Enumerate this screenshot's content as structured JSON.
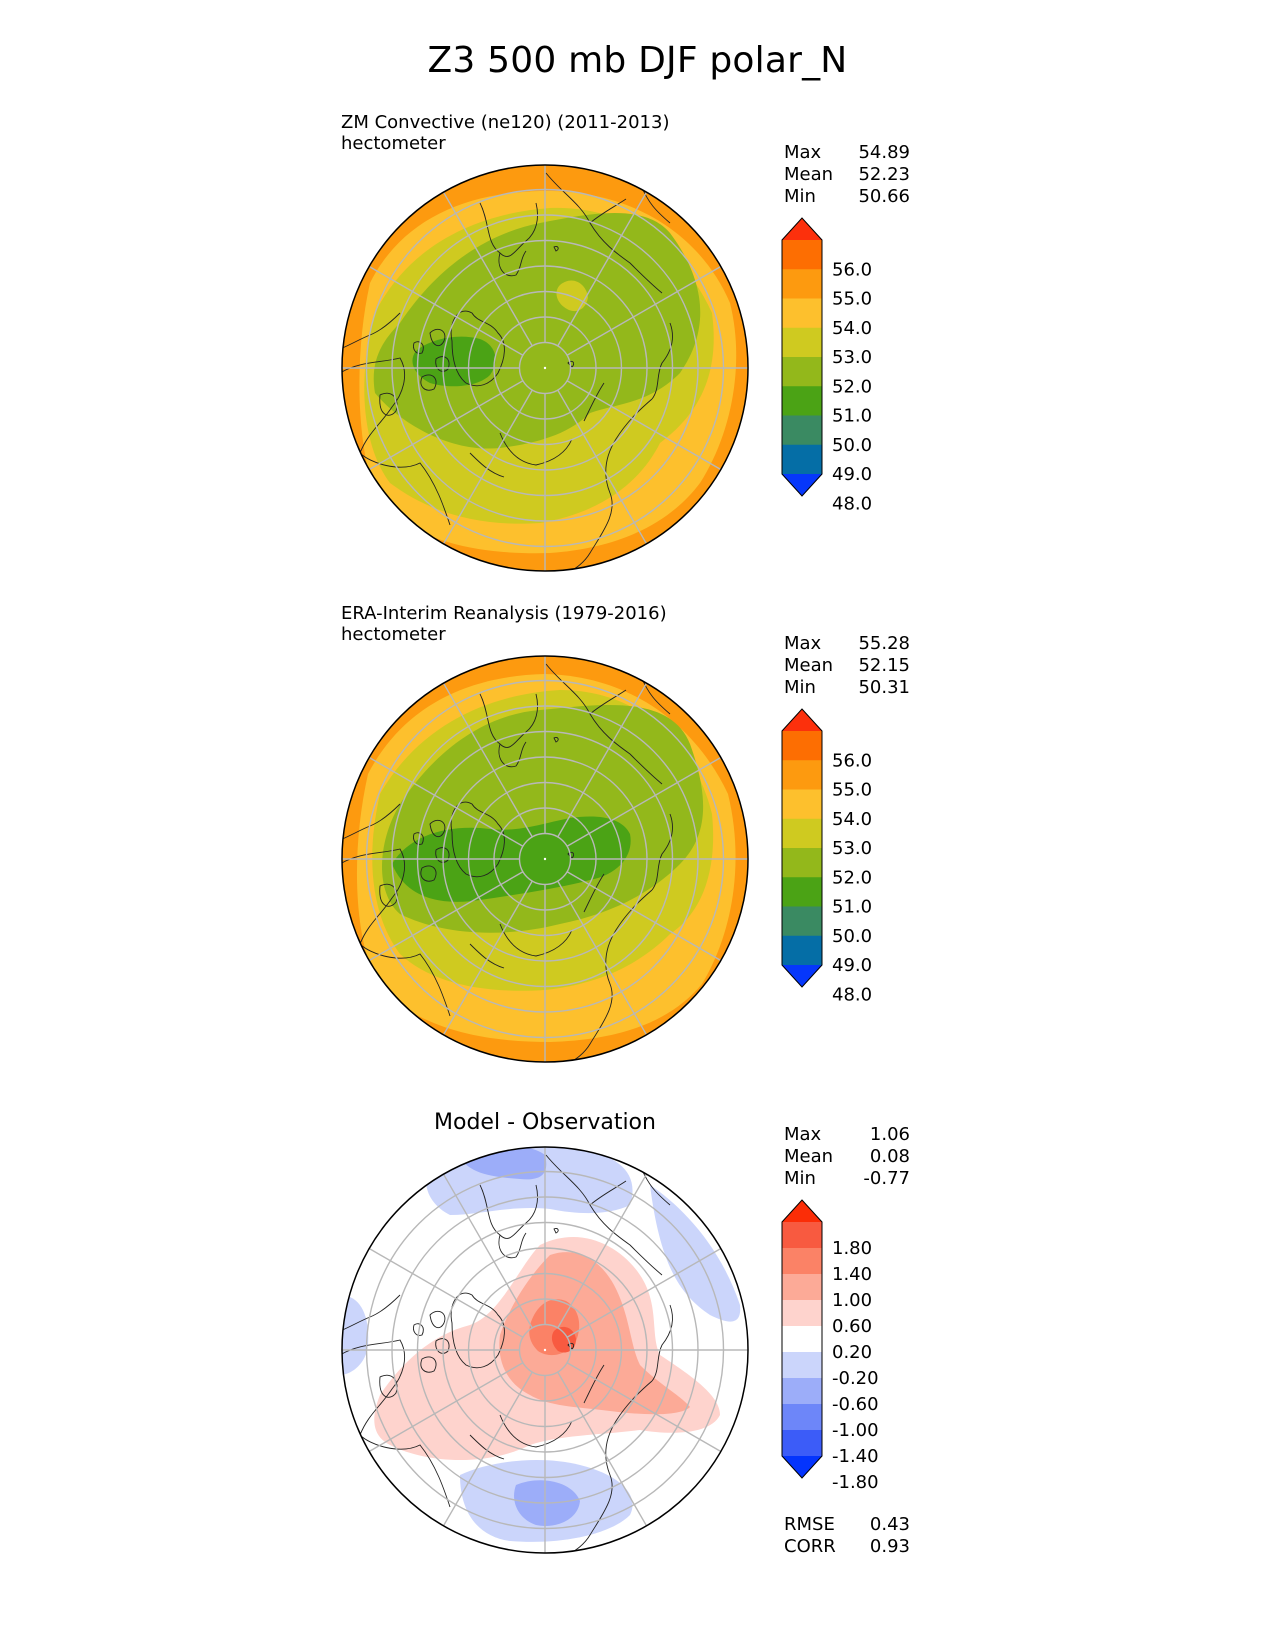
{
  "title": "Z3 500 mb DJF polar_N",
  "panels": [
    {
      "id": "test",
      "title_line1": "ZM Convective (ne120) (2011-2013)",
      "title_line2": "hectometer",
      "stats": [
        {
          "label": "Max",
          "value": "54.89"
        },
        {
          "label": "Mean",
          "value": "52.23"
        },
        {
          "label": "Min",
          "value": "50.66"
        }
      ]
    },
    {
      "id": "ref",
      "title_line1": "ERA-Interim Reanalysis (1979-2016)",
      "title_line2": "hectometer",
      "stats": [
        {
          "label": "Max",
          "value": "55.28"
        },
        {
          "label": "Mean",
          "value": "52.15"
        },
        {
          "label": "Min",
          "value": "50.31"
        }
      ]
    },
    {
      "id": "diff",
      "title": "Model - Observation",
      "stats": [
        {
          "label": "Max",
          "value": "1.06"
        },
        {
          "label": "Mean",
          "value": "0.08"
        },
        {
          "label": "Min",
          "value": "-0.77"
        }
      ],
      "metrics": [
        {
          "label": "RMSE",
          "value": "0.43"
        },
        {
          "label": "CORR",
          "value": "0.93"
        }
      ]
    }
  ],
  "chart_data": [
    {
      "type": "heatmap",
      "projection": "north polar stereographic",
      "title": "ZM Convective (ne120) (2011-2013)",
      "units": "hectometer",
      "stats": {
        "max": 54.89,
        "mean": 52.23,
        "min": 50.66
      },
      "colorbar": {
        "levels": [
          48.0,
          49.0,
          50.0,
          51.0,
          52.0,
          53.0,
          54.0,
          55.0,
          56.0
        ],
        "tick_labels": [
          "56.0",
          "55.0",
          "54.0",
          "53.0",
          "52.0",
          "51.0",
          "50.0",
          "49.0",
          "48.0"
        ],
        "colors": [
          "#0637fb",
          "#056ea6",
          "#3a8a62",
          "#4ba315",
          "#93b81b",
          "#cfca20",
          "#fdc02d",
          "#fd9a0f",
          "#fd6e02",
          "#fc300c"
        ],
        "extend": "both"
      }
    },
    {
      "type": "heatmap",
      "projection": "north polar stereographic",
      "title": "ERA-Interim Reanalysis (1979-2016)",
      "units": "hectometer",
      "stats": {
        "max": 55.28,
        "mean": 52.15,
        "min": 50.31
      },
      "colorbar": {
        "levels": [
          48.0,
          49.0,
          50.0,
          51.0,
          52.0,
          53.0,
          54.0,
          55.0,
          56.0
        ],
        "tick_labels": [
          "56.0",
          "55.0",
          "54.0",
          "53.0",
          "52.0",
          "51.0",
          "50.0",
          "49.0",
          "48.0"
        ],
        "colors": [
          "#0637fb",
          "#056ea6",
          "#3a8a62",
          "#4ba315",
          "#93b81b",
          "#cfca20",
          "#fdc02d",
          "#fd9a0f",
          "#fd6e02",
          "#fc300c"
        ],
        "extend": "both"
      }
    },
    {
      "type": "heatmap",
      "projection": "north polar stereographic",
      "title": "Model - Observation",
      "stats": {
        "max": 1.06,
        "mean": 0.08,
        "min": -0.77
      },
      "metrics": {
        "rmse": 0.43,
        "corr": 0.93
      },
      "colorbar": {
        "levels": [
          -1.8,
          -1.4,
          -1.0,
          -0.6,
          -0.2,
          0.2,
          0.6,
          1.0,
          1.4,
          1.8
        ],
        "tick_labels": [
          "1.80",
          "1.40",
          "1.00",
          "0.60",
          "0.20",
          "-0.20",
          "-0.60",
          "-1.00",
          "-1.40",
          "-1.80"
        ],
        "colors": [
          "#0434fd",
          "#3c5cf8",
          "#6d86f9",
          "#9cadf9",
          "#cbd5fb",
          "#ffffff",
          "#fed3cd",
          "#fcaa97",
          "#fb8266",
          "#f85a40",
          "#fb2d07"
        ],
        "extend": "both"
      }
    }
  ]
}
